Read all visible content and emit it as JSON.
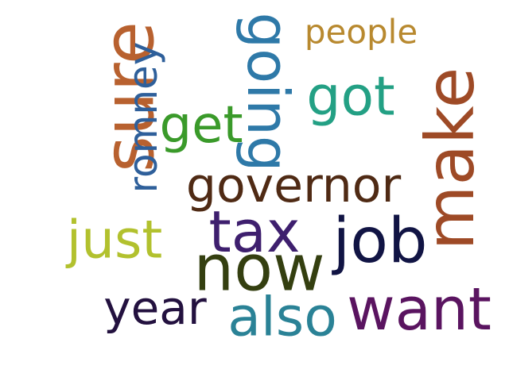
{
  "words": [
    {
      "id": "sure",
      "text": "sure",
      "color": "#b8612f"
    },
    {
      "id": "romney",
      "text": "romney",
      "color": "#2e5f9a"
    },
    {
      "id": "going",
      "text": "going",
      "color": "#2e79a8"
    },
    {
      "id": "people",
      "text": "people",
      "color": "#b8892f"
    },
    {
      "id": "got",
      "text": "got",
      "color": "#23a084"
    },
    {
      "id": "get",
      "text": "get",
      "color": "#3a9a2a"
    },
    {
      "id": "make",
      "text": "make",
      "color": "#9e4a26"
    },
    {
      "id": "governor",
      "text": "governor",
      "color": "#4f2a14"
    },
    {
      "id": "tax",
      "text": "tax",
      "color": "#3e1f6e"
    },
    {
      "id": "job",
      "text": "job",
      "color": "#111444"
    },
    {
      "id": "just",
      "text": "just",
      "color": "#b2c12e"
    },
    {
      "id": "now",
      "text": "now",
      "color": "#343f10"
    },
    {
      "id": "year",
      "text": "year",
      "color": "#23113f"
    },
    {
      "id": "also",
      "text": "also",
      "color": "#2a8296"
    },
    {
      "id": "want",
      "text": "want",
      "color": "#5a1460"
    }
  ]
}
